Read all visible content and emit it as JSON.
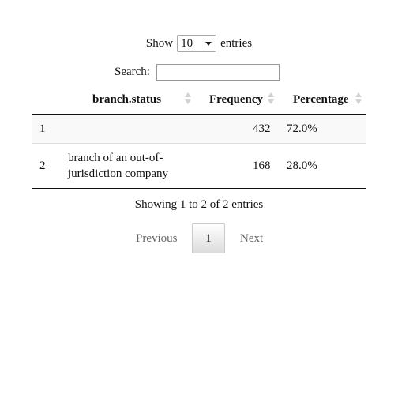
{
  "length_control": {
    "show_label": "Show",
    "selected_value": "10",
    "entries_label": "entries"
  },
  "search": {
    "label": "Search:",
    "value": ""
  },
  "table": {
    "headers": {
      "index": "",
      "branch_status": "branch.status",
      "frequency": "Frequency",
      "percentage": "Percentage"
    },
    "rows": [
      {
        "index": "1",
        "branch_status": "",
        "frequency": "432",
        "percentage": "72.0%"
      },
      {
        "index": "2",
        "branch_status": "branch of an out-of-jurisdiction company",
        "frequency": "168",
        "percentage": "28.0%"
      }
    ]
  },
  "info_text": "Showing 1 to 2 of 2 entries",
  "pagination": {
    "previous_label": "Previous",
    "current_page": "1",
    "next_label": "Next"
  }
}
